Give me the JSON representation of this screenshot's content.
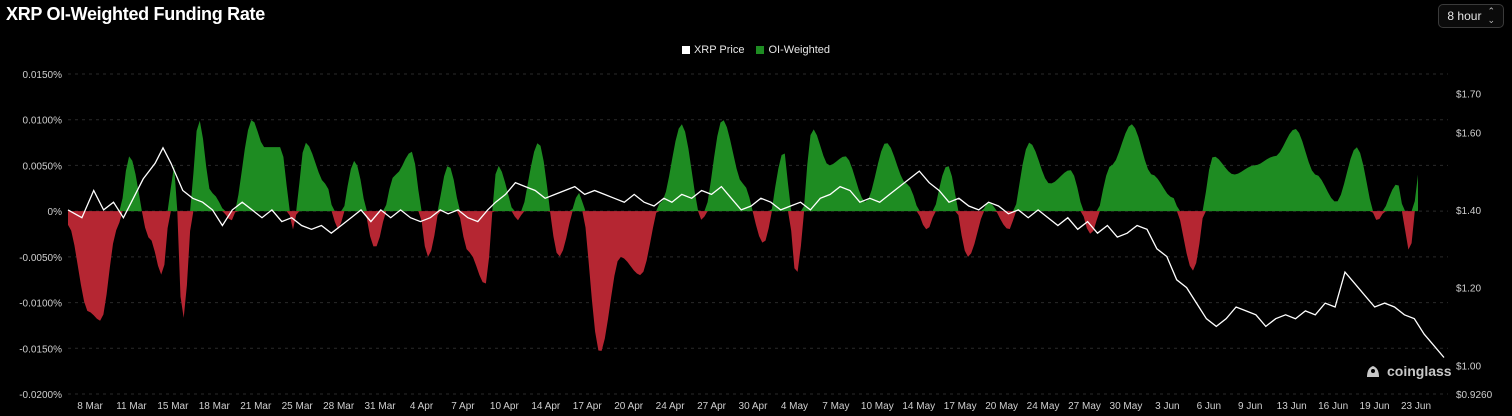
{
  "title": "XRP OI-Weighted Funding Rate",
  "interval_selector": {
    "value": "8 hour",
    "icon": "chevron-updown-icon"
  },
  "watermark": "coinglass",
  "colors": {
    "positive": "#1e8c22",
    "negative": "#b52632",
    "price": "#ffffff",
    "grid": "#2a2a2a",
    "axis_text": "#cfcfcf"
  },
  "chart_data": {
    "type": "area",
    "legend": [
      {
        "name": "XRP Price",
        "color": "#ffffff"
      },
      {
        "name": "OI-Weighted",
        "color": "#1e8c22"
      }
    ],
    "left_axis": {
      "ticks": [
        "0.0150%",
        "0.0100%",
        "0.0050%",
        "0%",
        "-0.0050%",
        "-0.0100%",
        "-0.0150%",
        "-0.0200%"
      ],
      "range": [
        -0.02,
        0.015
      ]
    },
    "right_axis": {
      "ticks": [
        "$1.70",
        "$1.60",
        "$1.40",
        "$1.20",
        "$1.00",
        "$0.9260"
      ],
      "range": [
        0.926,
        1.75
      ]
    },
    "x_labels": [
      "8 Mar",
      "11 Mar",
      "15 Mar",
      "18 Mar",
      "21 Mar",
      "25 Mar",
      "28 Mar",
      "31 Mar",
      "4 Apr",
      "7 Apr",
      "10 Apr",
      "14 Apr",
      "17 Apr",
      "20 Apr",
      "24 Apr",
      "27 Apr",
      "30 Apr",
      "4 May",
      "7 May",
      "10 May",
      "14 May",
      "17 May",
      "20 May",
      "24 May",
      "27 May",
      "30 May",
      "3 Jun",
      "6 Jun",
      "9 Jun",
      "13 Jun",
      "16 Jun",
      "19 Jun",
      "23 Jun"
    ],
    "funding_keypoints": [
      [
        0,
        -0.0015
      ],
      [
        0.5,
        -0.011
      ],
      [
        0.8,
        -0.012
      ],
      [
        1.2,
        -0.002
      ],
      [
        1.5,
        0.006
      ],
      [
        2,
        -0.003
      ],
      [
        2.3,
        -0.007
      ],
      [
        2.6,
        0.005
      ],
      [
        2.8,
        -0.012
      ],
      [
        3.2,
        0.01
      ],
      [
        3.5,
        0.002
      ],
      [
        4,
        -0.001
      ],
      [
        4.5,
        0.01
      ],
      [
        4.8,
        0.007
      ],
      [
        5.2,
        0.007
      ],
      [
        5.5,
        -0.002
      ],
      [
        5.8,
        0.0075
      ],
      [
        6.3,
        0.003
      ],
      [
        6.6,
        -0.002
      ],
      [
        7,
        0.0055
      ],
      [
        7.5,
        -0.004
      ],
      [
        8,
        0.004
      ],
      [
        8.4,
        0.0065
      ],
      [
        8.8,
        -0.005
      ],
      [
        9.3,
        0.005
      ],
      [
        9.8,
        -0.0045
      ],
      [
        10.2,
        -0.008
      ],
      [
        10.5,
        0.005
      ],
      [
        11,
        -0.001
      ],
      [
        11.5,
        0.0075
      ],
      [
        12,
        -0.005
      ],
      [
        12.5,
        0.002
      ],
      [
        13,
        -0.0155
      ],
      [
        13.5,
        -0.005
      ],
      [
        14,
        -0.007
      ],
      [
        14.5,
        0.001
      ],
      [
        15,
        0.0095
      ],
      [
        15.5,
        -0.001
      ],
      [
        16,
        0.01
      ],
      [
        16.5,
        0.003
      ],
      [
        17,
        -0.0035
      ],
      [
        17.5,
        0.0065
      ],
      [
        17.8,
        -0.007
      ],
      [
        18.2,
        0.009
      ],
      [
        18.6,
        0.005
      ],
      [
        19,
        0.006
      ],
      [
        19.5,
        0.001
      ],
      [
        20,
        0.0075
      ],
      [
        20.5,
        0.003
      ],
      [
        21,
        -0.002
      ],
      [
        21.5,
        0.005
      ],
      [
        22,
        -0.005
      ],
      [
        22.5,
        0.001
      ],
      [
        23,
        -0.002
      ],
      [
        23.5,
        0.0075
      ],
      [
        24,
        0.003
      ],
      [
        24.5,
        0.0045
      ],
      [
        25,
        -0.0025
      ],
      [
        25.5,
        0.005
      ],
      [
        26,
        0.0095
      ],
      [
        26.5,
        0.004
      ],
      [
        27,
        0.0015
      ],
      [
        27.5,
        -0.0065
      ],
      [
        28,
        0.006
      ],
      [
        28.5,
        0.004
      ],
      [
        29,
        0.005
      ],
      [
        29.5,
        0.006
      ],
      [
        30,
        0.009
      ],
      [
        30.5,
        0.004
      ],
      [
        31,
        0.001
      ],
      [
        31.5,
        0.007
      ],
      [
        32,
        -0.001
      ],
      [
        32.5,
        0.003
      ],
      [
        32.8,
        -0.0045
      ],
      [
        33,
        0.004
      ]
    ],
    "price_keypoints": [
      [
        0,
        1.4
      ],
      [
        0.7,
        1.38
      ],
      [
        1.3,
        1.45
      ],
      [
        1.8,
        1.4
      ],
      [
        2.3,
        1.42
      ],
      [
        2.8,
        1.38
      ],
      [
        3.3,
        1.43
      ],
      [
        3.8,
        1.48
      ],
      [
        4.4,
        1.52
      ],
      [
        4.8,
        1.56
      ],
      [
        5.2,
        1.52
      ],
      [
        5.8,
        1.45
      ],
      [
        6.3,
        1.43
      ],
      [
        6.8,
        1.42
      ],
      [
        7.3,
        1.4
      ],
      [
        7.8,
        1.36
      ],
      [
        8.3,
        1.4
      ],
      [
        8.8,
        1.42
      ],
      [
        9.3,
        1.4
      ],
      [
        9.8,
        1.38
      ],
      [
        10.3,
        1.4
      ],
      [
        10.8,
        1.37
      ],
      [
        11.3,
        1.38
      ],
      [
        11.8,
        1.36
      ],
      [
        12.3,
        1.35
      ],
      [
        12.8,
        1.36
      ],
      [
        13.3,
        1.34
      ],
      [
        13.8,
        1.36
      ],
      [
        14.3,
        1.38
      ],
      [
        14.8,
        1.4
      ],
      [
        15.3,
        1.37
      ],
      [
        15.8,
        1.4
      ],
      [
        16.3,
        1.38
      ],
      [
        16.8,
        1.4
      ],
      [
        17.3,
        1.38
      ],
      [
        17.8,
        1.37
      ],
      [
        18.3,
        1.38
      ],
      [
        18.8,
        1.4
      ],
      [
        19.2,
        1.39
      ],
      [
        19.7,
        1.4
      ],
      [
        20.2,
        1.38
      ],
      [
        20.7,
        1.37
      ],
      [
        21.2,
        1.4
      ],
      [
        21.6,
        1.42
      ],
      [
        22.1,
        1.44
      ],
      [
        22.6,
        1.47
      ],
      [
        23.1,
        1.46
      ],
      [
        23.6,
        1.45
      ],
      [
        24.1,
        1.43
      ],
      [
        24.6,
        1.44
      ],
      [
        25.1,
        1.45
      ],
      [
        25.6,
        1.46
      ],
      [
        26.1,
        1.44
      ],
      [
        26.6,
        1.45
      ],
      [
        27.1,
        1.44
      ],
      [
        27.6,
        1.43
      ],
      [
        28.1,
        1.42
      ],
      [
        28.6,
        1.44
      ],
      [
        29.1,
        1.42
      ],
      [
        29.6,
        1.41
      ],
      [
        30.1,
        1.43
      ],
      [
        30.5,
        1.42
      ],
      [
        31,
        1.44
      ],
      [
        31.5,
        1.43
      ],
      [
        32,
        1.45
      ],
      [
        32.5,
        1.44
      ],
      [
        33,
        1.46
      ],
      [
        33.5,
        1.43
      ],
      [
        34,
        1.4
      ],
      [
        34.5,
        1.41
      ],
      [
        35,
        1.43
      ],
      [
        35.5,
        1.42
      ],
      [
        36,
        1.4
      ],
      [
        36.5,
        1.41
      ],
      [
        37,
        1.42
      ],
      [
        37.5,
        1.4
      ],
      [
        38,
        1.43
      ],
      [
        38.5,
        1.44
      ],
      [
        39,
        1.46
      ],
      [
        39.5,
        1.45
      ],
      [
        40,
        1.42
      ],
      [
        40.5,
        1.43
      ],
      [
        41,
        1.42
      ],
      [
        41.5,
        1.44
      ],
      [
        42,
        1.46
      ],
      [
        42.5,
        1.48
      ],
      [
        43,
        1.5
      ],
      [
        43.5,
        1.47
      ],
      [
        44,
        1.45
      ],
      [
        44.5,
        1.42
      ],
      [
        45,
        1.43
      ],
      [
        45.5,
        1.41
      ],
      [
        46,
        1.4
      ],
      [
        46.5,
        1.42
      ],
      [
        47,
        1.41
      ],
      [
        47.5,
        1.39
      ],
      [
        48,
        1.4
      ],
      [
        48.5,
        1.38
      ],
      [
        49,
        1.4
      ],
      [
        49.5,
        1.38
      ],
      [
        50,
        1.36
      ],
      [
        50.5,
        1.38
      ],
      [
        51,
        1.35
      ],
      [
        51.5,
        1.37
      ],
      [
        52,
        1.34
      ],
      [
        52.5,
        1.36
      ],
      [
        53,
        1.33
      ],
      [
        53.5,
        1.34
      ],
      [
        54,
        1.36
      ],
      [
        54.5,
        1.35
      ],
      [
        55,
        1.3
      ],
      [
        55.5,
        1.28
      ],
      [
        56,
        1.22
      ],
      [
        56.5,
        1.2
      ],
      [
        57,
        1.16
      ],
      [
        57.5,
        1.12
      ],
      [
        58,
        1.1
      ],
      [
        58.5,
        1.12
      ],
      [
        59,
        1.15
      ],
      [
        59.5,
        1.14
      ],
      [
        60,
        1.13
      ],
      [
        60.5,
        1.1
      ],
      [
        61,
        1.12
      ],
      [
        61.5,
        1.13
      ],
      [
        62,
        1.12
      ],
      [
        62.5,
        1.14
      ],
      [
        63,
        1.13
      ],
      [
        63.5,
        1.16
      ],
      [
        64,
        1.15
      ],
      [
        64.5,
        1.24
      ],
      [
        65,
        1.21
      ],
      [
        65.5,
        1.18
      ],
      [
        66,
        1.15
      ],
      [
        66.5,
        1.16
      ],
      [
        67,
        1.15
      ],
      [
        67.5,
        1.13
      ],
      [
        68,
        1.12
      ],
      [
        68.5,
        1.08
      ],
      [
        69,
        1.05
      ],
      [
        69.5,
        1.02
      ]
    ]
  }
}
